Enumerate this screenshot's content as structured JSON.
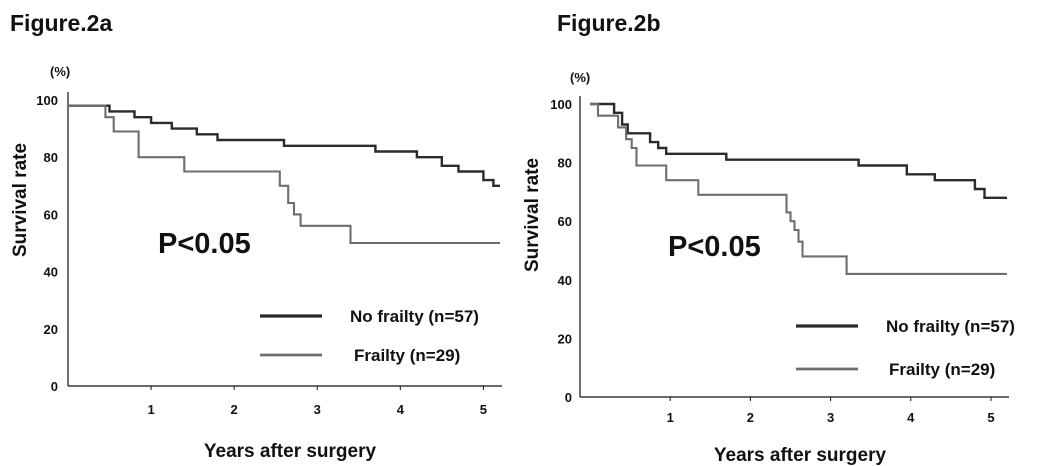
{
  "chart_data": [
    {
      "type": "line",
      "step": true,
      "title": "Figure.2a",
      "xlabel": "Years after surgery",
      "ylabel": "Survival rate",
      "y_unit": "(%)",
      "annotation": "P<0.05",
      "xlim": [
        0,
        5.2
      ],
      "ylim": [
        0,
        100
      ],
      "x_ticks": [
        1,
        2,
        3,
        4,
        5
      ],
      "y_ticks": [
        0,
        20,
        40,
        60,
        80,
        100
      ],
      "grid": false,
      "legend_position": "bottom-right",
      "series": [
        {
          "name": "No frailty (n=57)",
          "color": "#2b2b2b",
          "points": [
            [
              0,
              98
            ],
            [
              0.5,
              98
            ],
            [
              0.5,
              96
            ],
            [
              0.8,
              96
            ],
            [
              0.8,
              94
            ],
            [
              1.0,
              94
            ],
            [
              1.0,
              92
            ],
            [
              1.25,
              92
            ],
            [
              1.25,
              90
            ],
            [
              1.55,
              90
            ],
            [
              1.55,
              88
            ],
            [
              1.8,
              88
            ],
            [
              1.8,
              86
            ],
            [
              2.6,
              86
            ],
            [
              2.6,
              84
            ],
            [
              3.7,
              84
            ],
            [
              3.7,
              82
            ],
            [
              4.2,
              82
            ],
            [
              4.2,
              80
            ],
            [
              4.5,
              80
            ],
            [
              4.5,
              77
            ],
            [
              4.7,
              77
            ],
            [
              4.7,
              75
            ],
            [
              5.0,
              75
            ],
            [
              5.0,
              72
            ],
            [
              5.12,
              72
            ],
            [
              5.12,
              70
            ],
            [
              5.2,
              70
            ]
          ]
        },
        {
          "name": "Frailty (n=29)",
          "color": "#6e6e6e",
          "points": [
            [
              0,
              98
            ],
            [
              0.45,
              98
            ],
            [
              0.45,
              94
            ],
            [
              0.55,
              94
            ],
            [
              0.55,
              89
            ],
            [
              0.85,
              89
            ],
            [
              0.85,
              80
            ],
            [
              1.4,
              80
            ],
            [
              1.4,
              75
            ],
            [
              2.55,
              75
            ],
            [
              2.55,
              70
            ],
            [
              2.65,
              70
            ],
            [
              2.65,
              64
            ],
            [
              2.72,
              64
            ],
            [
              2.72,
              60
            ],
            [
              2.8,
              60
            ],
            [
              2.8,
              56
            ],
            [
              3.4,
              56
            ],
            [
              3.4,
              50
            ],
            [
              5.2,
              50
            ]
          ]
        }
      ]
    },
    {
      "type": "line",
      "step": true,
      "title": "Figure.2b",
      "xlabel": "Years after surgery",
      "ylabel": "Survival rate",
      "y_unit": "(%)",
      "annotation": "P<0.05",
      "xlim": [
        0,
        5.2
      ],
      "ylim": [
        0,
        100
      ],
      "x_ticks": [
        1,
        2,
        3,
        4,
        5
      ],
      "y_ticks": [
        0,
        20,
        40,
        60,
        80,
        100
      ],
      "grid": false,
      "legend_position": "bottom-right",
      "series": [
        {
          "name": "No frailty (n=57)",
          "color": "#2b2b2b",
          "points": [
            [
              0,
              100
            ],
            [
              0.3,
              100
            ],
            [
              0.3,
              97
            ],
            [
              0.4,
              97
            ],
            [
              0.4,
              93
            ],
            [
              0.47,
              93
            ],
            [
              0.47,
              90
            ],
            [
              0.75,
              90
            ],
            [
              0.75,
              87
            ],
            [
              0.85,
              87
            ],
            [
              0.85,
              85
            ],
            [
              0.95,
              85
            ],
            [
              0.95,
              83
            ],
            [
              1.7,
              83
            ],
            [
              1.7,
              81
            ],
            [
              3.35,
              81
            ],
            [
              3.35,
              79
            ],
            [
              3.95,
              79
            ],
            [
              3.95,
              76
            ],
            [
              4.3,
              76
            ],
            [
              4.3,
              74
            ],
            [
              4.8,
              74
            ],
            [
              4.8,
              71
            ],
            [
              4.92,
              71
            ],
            [
              4.92,
              68
            ],
            [
              5.2,
              68
            ]
          ]
        },
        {
          "name": "Frailty (n=29)",
          "color": "#6e6e6e",
          "points": [
            [
              0,
              100
            ],
            [
              0.1,
              100
            ],
            [
              0.1,
              96
            ],
            [
              0.35,
              96
            ],
            [
              0.35,
              92
            ],
            [
              0.45,
              92
            ],
            [
              0.45,
              88
            ],
            [
              0.52,
              88
            ],
            [
              0.52,
              85
            ],
            [
              0.58,
              85
            ],
            [
              0.58,
              79
            ],
            [
              0.95,
              79
            ],
            [
              0.95,
              74
            ],
            [
              1.35,
              74
            ],
            [
              1.35,
              69
            ],
            [
              2.45,
              69
            ],
            [
              2.45,
              63
            ],
            [
              2.5,
              63
            ],
            [
              2.5,
              60
            ],
            [
              2.55,
              60
            ],
            [
              2.55,
              57
            ],
            [
              2.6,
              57
            ],
            [
              2.6,
              53
            ],
            [
              2.65,
              53
            ],
            [
              2.65,
              48
            ],
            [
              3.2,
              48
            ],
            [
              3.2,
              42
            ],
            [
              5.2,
              42
            ]
          ]
        }
      ]
    }
  ]
}
